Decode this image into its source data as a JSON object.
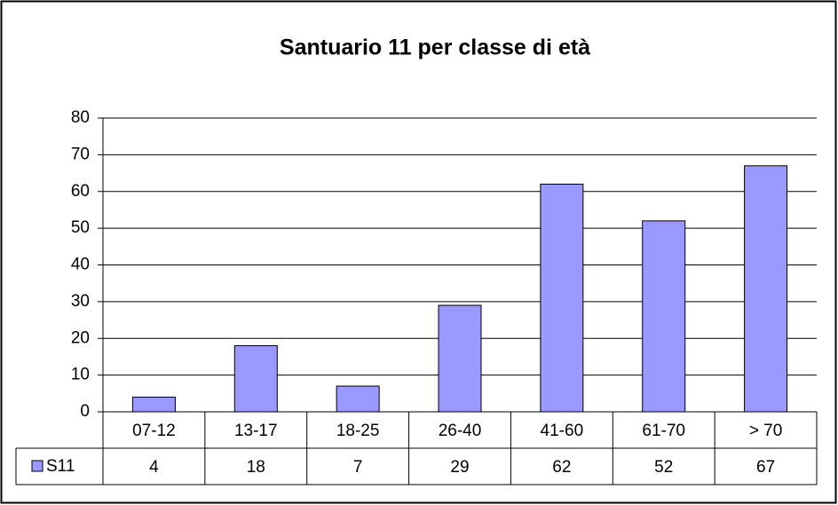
{
  "chart_data": {
    "type": "bar",
    "title": "Santuario 11 per classe di età",
    "categories": [
      "07-12",
      "13-17",
      "18-25",
      "26-40",
      "41-60",
      "61-70",
      "> 70"
    ],
    "series": [
      {
        "name": "S11",
        "color": "#9999ff",
        "values": [
          4,
          18,
          7,
          29,
          62,
          52,
          67
        ]
      }
    ],
    "ylim": [
      0,
      80
    ],
    "yticks": [
      0,
      10,
      20,
      30,
      40,
      50,
      60,
      70,
      80
    ],
    "grid": true
  }
}
